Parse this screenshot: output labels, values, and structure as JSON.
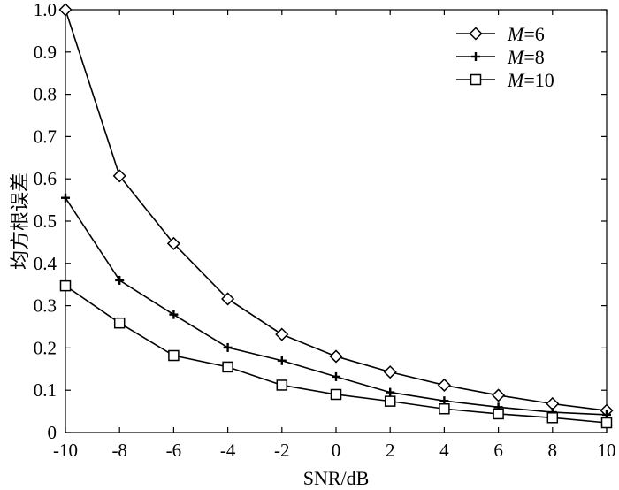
{
  "chart_data": {
    "type": "line",
    "title": "",
    "xlabel": "SNR/dB",
    "ylabel": "均方根误差",
    "xlim": [
      -10,
      10
    ],
    "ylim": [
      0,
      1.0
    ],
    "x": [
      -10,
      -8,
      -6,
      -4,
      -2,
      0,
      2,
      4,
      6,
      8,
      10
    ],
    "xticks": [
      "-10",
      "-8",
      "-6",
      "-4",
      "-2",
      "0",
      "2",
      "4",
      "6",
      "8",
      "10"
    ],
    "yticks": [
      "0",
      "0.1",
      "0.2",
      "0.3",
      "0.4",
      "0.5",
      "0.6",
      "0.7",
      "0.8",
      "0.9",
      "1.0"
    ],
    "grid": false,
    "legend_position": "top-right",
    "series": [
      {
        "name_var": "M",
        "name_value": "=6",
        "marker": "diamond",
        "values": [
          1.0,
          0.607,
          0.447,
          0.316,
          0.232,
          0.18,
          0.143,
          0.112,
          0.088,
          0.068,
          0.052
        ]
      },
      {
        "name_var": "M",
        "name_value": "=8",
        "marker": "plus",
        "values": [
          0.555,
          0.36,
          0.279,
          0.201,
          0.17,
          0.132,
          0.095,
          0.075,
          0.06,
          0.048,
          0.042
        ]
      },
      {
        "name_var": "M",
        "name_value": "=10",
        "marker": "square",
        "values": [
          0.347,
          0.259,
          0.182,
          0.155,
          0.112,
          0.09,
          0.074,
          0.056,
          0.044,
          0.035,
          0.023
        ]
      }
    ]
  }
}
